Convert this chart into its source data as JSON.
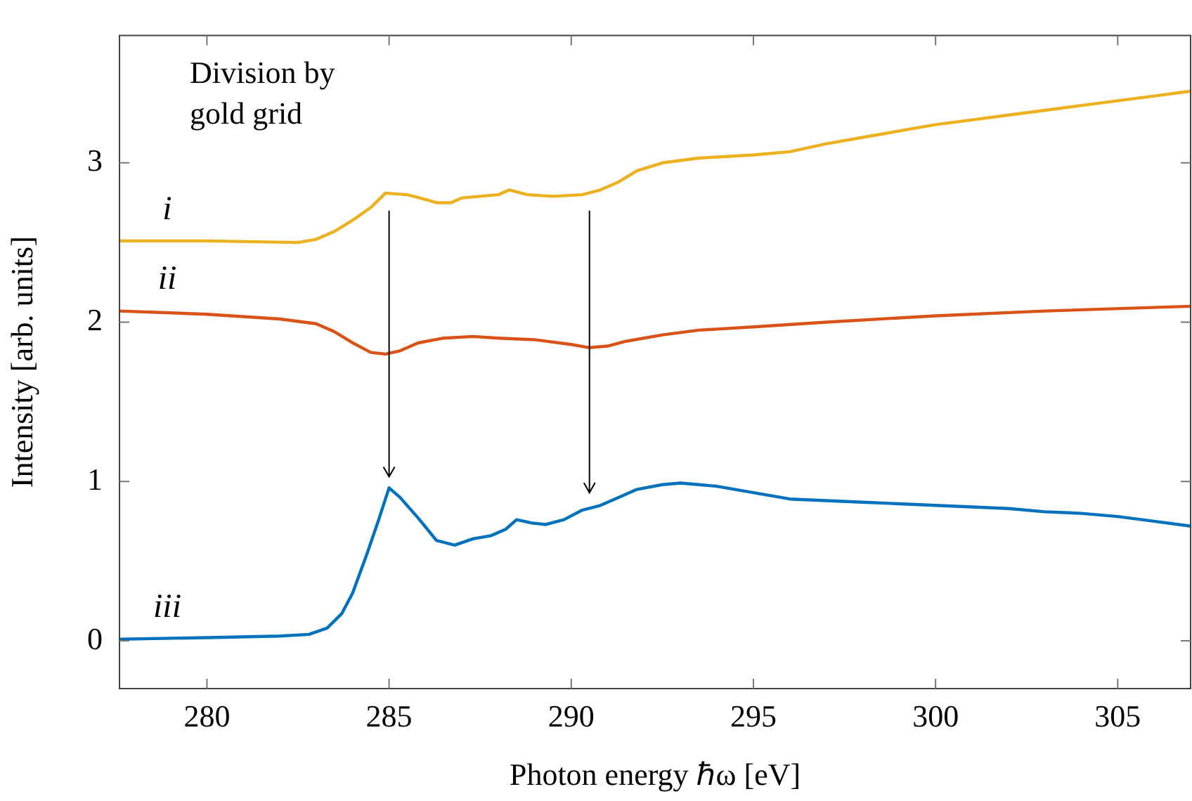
{
  "chart_data": {
    "type": "line",
    "xlabel": "Photon energy ℏω [eV]",
    "ylabel": "Intensity [arb. units]",
    "xlim": [
      277.6,
      307
    ],
    "ylim": [
      -0.3,
      3.8
    ],
    "xticks": [
      280,
      285,
      290,
      295,
      300,
      305
    ],
    "yticks": [
      0,
      1,
      2,
      3
    ],
    "grid": false,
    "legend": false,
    "marker": "none",
    "line_style": "solid",
    "series": [
      {
        "name": "i",
        "color": "#edb120",
        "x": [
          277.6,
          280,
          282.5,
          283,
          283.5,
          284,
          284.5,
          284.9,
          285.5,
          286,
          286.3,
          286.7,
          287,
          287.5,
          288,
          288.3,
          288.8,
          289.5,
          290.3,
          290.8,
          291.3,
          291.8,
          292.5,
          293.5,
          295,
          296,
          297,
          298,
          299,
          300,
          301,
          302,
          303,
          304,
          305,
          306,
          307
        ],
        "values": [
          2.51,
          2.51,
          2.5,
          2.52,
          2.57,
          2.64,
          2.72,
          2.81,
          2.8,
          2.77,
          2.75,
          2.75,
          2.78,
          2.79,
          2.8,
          2.83,
          2.8,
          2.79,
          2.8,
          2.83,
          2.88,
          2.95,
          3.0,
          3.03,
          3.05,
          3.07,
          3.12,
          3.16,
          3.2,
          3.24,
          3.27,
          3.3,
          3.33,
          3.36,
          3.39,
          3.42,
          3.45
        ]
      },
      {
        "name": "ii",
        "color": "#d95319",
        "x": [
          277.6,
          280,
          282,
          283,
          283.5,
          284,
          284.5,
          284.9,
          285.3,
          285.8,
          286.5,
          287.3,
          288,
          289,
          290,
          290.5,
          291,
          291.5,
          292.5,
          293.5,
          295,
          297,
          300,
          303,
          307
        ],
        "values": [
          2.07,
          2.05,
          2.02,
          1.99,
          1.94,
          1.87,
          1.81,
          1.8,
          1.82,
          1.87,
          1.9,
          1.91,
          1.9,
          1.89,
          1.86,
          1.84,
          1.85,
          1.88,
          1.92,
          1.95,
          1.97,
          2.0,
          2.04,
          2.07,
          2.1
        ]
      },
      {
        "name": "iii",
        "color": "#0072bd",
        "x": [
          277.6,
          280,
          282,
          282.8,
          283.3,
          283.7,
          284,
          284.4,
          284.7,
          285,
          285.3,
          285.8,
          286.3,
          286.8,
          287.3,
          287.8,
          288.2,
          288.5,
          288.9,
          289.3,
          289.8,
          290.3,
          290.8,
          291.3,
          291.8,
          292.5,
          293,
          293.5,
          294,
          295,
          296,
          297,
          298,
          299,
          300,
          301,
          302,
          303,
          304,
          305,
          306,
          307
        ],
        "values": [
          0.01,
          0.02,
          0.03,
          0.04,
          0.08,
          0.17,
          0.3,
          0.55,
          0.75,
          0.96,
          0.9,
          0.77,
          0.63,
          0.6,
          0.64,
          0.66,
          0.7,
          0.76,
          0.74,
          0.73,
          0.76,
          0.82,
          0.85,
          0.9,
          0.95,
          0.98,
          0.99,
          0.98,
          0.97,
          0.93,
          0.89,
          0.88,
          0.87,
          0.86,
          0.85,
          0.84,
          0.83,
          0.81,
          0.8,
          0.78,
          0.75,
          0.72
        ]
      }
    ],
    "annotations": [
      "Division by gold grid"
    ]
  }
}
